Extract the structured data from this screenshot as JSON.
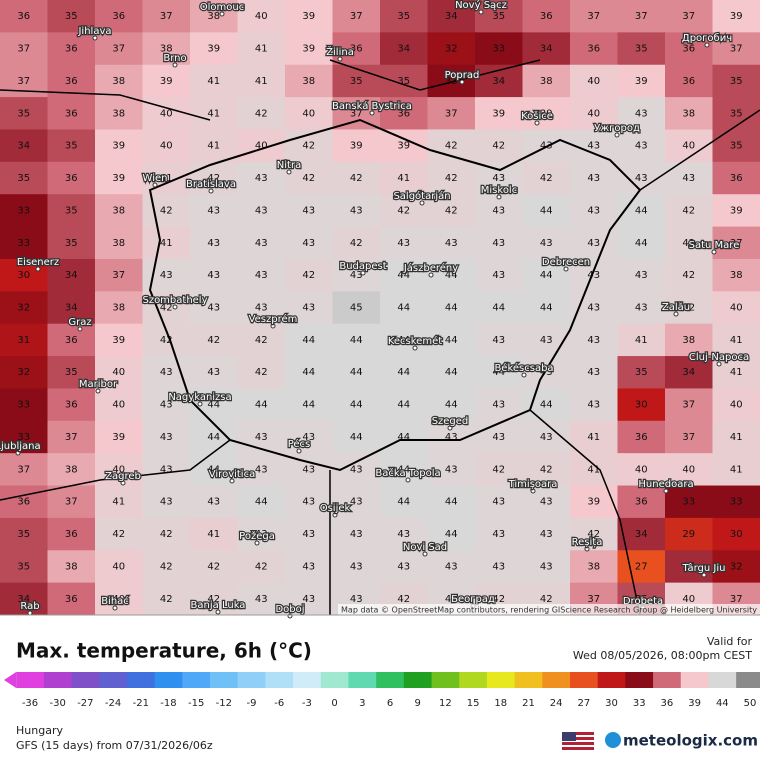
{
  "map": {
    "rows": [
      [
        36,
        35,
        36,
        37,
        38,
        40,
        39,
        37,
        35,
        34,
        35,
        36,
        37,
        37,
        37,
        39
      ],
      [
        37,
        36,
        37,
        38,
        39,
        41,
        39,
        36,
        34,
        32,
        33,
        34,
        36,
        35,
        36,
        37
      ],
      [
        37,
        36,
        38,
        39,
        41,
        41,
        38,
        35,
        35,
        33,
        34,
        38,
        40,
        39,
        36,
        35
      ],
      [
        35,
        36,
        38,
        40,
        41,
        42,
        40,
        37,
        36,
        37,
        39,
        39,
        40,
        43,
        38,
        35
      ],
      [
        34,
        35,
        39,
        40,
        41,
        40,
        42,
        39,
        39,
        42,
        42,
        43,
        43,
        43,
        40,
        35
      ],
      [
        35,
        36,
        39,
        41,
        42,
        43,
        42,
        42,
        41,
        42,
        43,
        42,
        43,
        43,
        43,
        36
      ],
      [
        33,
        35,
        38,
        42,
        43,
        43,
        43,
        43,
        42,
        42,
        43,
        44,
        43,
        44,
        42,
        39
      ],
      [
        33,
        35,
        38,
        41,
        43,
        43,
        43,
        42,
        43,
        43,
        43,
        43,
        43,
        44,
        42,
        37
      ],
      [
        30,
        34,
        37,
        43,
        43,
        43,
        42,
        43,
        44,
        44,
        43,
        44,
        43,
        43,
        42,
        38
      ],
      [
        32,
        34,
        38,
        42,
        43,
        43,
        43,
        45,
        44,
        44,
        44,
        44,
        43,
        43,
        42,
        40
      ],
      [
        31,
        36,
        39,
        42,
        42,
        42,
        44,
        44,
        44,
        44,
        43,
        43,
        43,
        41,
        38,
        41
      ],
      [
        32,
        35,
        40,
        43,
        43,
        42,
        44,
        44,
        44,
        44,
        44,
        43,
        43,
        35,
        34,
        41
      ],
      [
        33,
        36,
        40,
        43,
        44,
        44,
        44,
        44,
        44,
        44,
        43,
        44,
        43,
        30,
        37,
        40
      ],
      [
        33,
        37,
        39,
        43,
        44,
        43,
        43,
        44,
        44,
        43,
        43,
        43,
        41,
        36,
        37,
        41
      ],
      [
        37,
        38,
        40,
        43,
        44,
        43,
        43,
        43,
        44,
        43,
        42,
        42,
        41,
        40,
        40,
        41
      ],
      [
        36,
        37,
        41,
        43,
        43,
        44,
        43,
        43,
        44,
        44,
        43,
        43,
        39,
        36,
        33,
        33
      ],
      [
        35,
        36,
        42,
        42,
        41,
        43,
        43,
        43,
        43,
        44,
        43,
        43,
        42,
        34,
        29,
        30
      ],
      [
        35,
        38,
        40,
        42,
        42,
        42,
        43,
        43,
        43,
        43,
        43,
        43,
        38,
        27,
        34,
        32
      ],
      [
        34,
        36,
        40,
        42,
        42,
        43,
        43,
        43,
        42,
        43,
        42,
        42,
        37,
        35,
        40,
        37
      ]
    ],
    "cities": [
      "Olomouc",
      "Nový Sącz",
      "Jihlava",
      "Brno",
      "Žilina",
      "Дрогобич",
      "Poprad",
      "Banská Bystrica",
      "Košice",
      "Ужгород",
      "Nitra",
      "Wien",
      "Bratislava",
      "Salgótarján",
      "Miskolc",
      "Eisenerz",
      "Budapest",
      "Jászberény",
      "Debrecen",
      "Satu Mare",
      "Szombathely",
      "Graz",
      "Veszprém",
      "Zalău",
      "Kecskemét",
      "Békéscsaba",
      "Cluj-Napoca",
      "Maribor",
      "Nagykanizsa",
      "Szeged",
      "Ljubljana",
      "Pécs",
      "Zagreb",
      "Virovitica",
      "Bačka Topola",
      "Timișoara",
      "Hunedoara",
      "Osijek",
      "Požega",
      "Reșița",
      "Novi Sad",
      "Târgu Jiu",
      "Bihać",
      "Београд",
      "Banja Luka",
      "Doboj",
      "Drobeta",
      "Rab"
    ],
    "attribution": "Map data © OpenStreetMap contributors, rendering GIScience Research Group @ Heidelberg University"
  },
  "legend": {
    "title": "Max. temperature, 6h (°C)",
    "valid_label": "Valid for",
    "valid_time": "Wed 08/05/2026, 08:00pm CEST",
    "ticks": [
      {
        "value": -36,
        "color": "#e040e0"
      },
      {
        "value": -30,
        "color": "#b040d0"
      },
      {
        "value": -27,
        "color": "#8050c8"
      },
      {
        "value": -24,
        "color": "#6060d0"
      },
      {
        "value": -21,
        "color": "#4070e0"
      },
      {
        "value": -18,
        "color": "#3090f0"
      },
      {
        "value": -15,
        "color": "#50a8f8"
      },
      {
        "value": -12,
        "color": "#70c0f8"
      },
      {
        "value": -9,
        "color": "#90d0f8"
      },
      {
        "value": -6,
        "color": "#b0e0f8"
      },
      {
        "value": -3,
        "color": "#d0ecf8"
      },
      {
        "value": 0,
        "color": "#a0e8d0"
      },
      {
        "value": 3,
        "color": "#60d8b0"
      },
      {
        "value": 6,
        "color": "#30c060"
      },
      {
        "value": 9,
        "color": "#20a020"
      },
      {
        "value": 12,
        "color": "#70c020"
      },
      {
        "value": 15,
        "color": "#b0d820"
      },
      {
        "value": 18,
        "color": "#e8e820"
      },
      {
        "value": 21,
        "color": "#f0c020"
      },
      {
        "value": 24,
        "color": "#f09020"
      },
      {
        "value": 27,
        "color": "#e85020"
      },
      {
        "value": 30,
        "color": "#c01818"
      },
      {
        "value": 33,
        "color": "#8a0c18"
      },
      {
        "value": 36,
        "color": "#d06a78"
      },
      {
        "value": 39,
        "color": "#f4c8cc"
      },
      {
        "value": 44,
        "color": "#d8d8d8"
      },
      {
        "value": 50,
        "color": "#8a8a8a"
      }
    ]
  },
  "footer": {
    "region": "Hungary",
    "model": "GFS (15 days) from 07/31/2026/06z",
    "brand": "meteologix.com"
  }
}
